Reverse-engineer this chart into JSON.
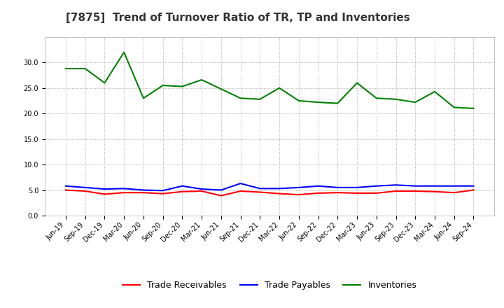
{
  "title": "[7875]  Trend of Turnover Ratio of TR, TP and Inventories",
  "x_labels": [
    "Jun-19",
    "Sep-19",
    "Dec-19",
    "Mar-20",
    "Jun-20",
    "Sep-20",
    "Dec-20",
    "Mar-21",
    "Jun-21",
    "Sep-21",
    "Dec-21",
    "Mar-22",
    "Jun-22",
    "Sep-22",
    "Dec-22",
    "Mar-23",
    "Jun-23",
    "Sep-23",
    "Dec-23",
    "Mar-24",
    "Jun-24",
    "Sep-24"
  ],
  "trade_receivables": [
    5.0,
    4.8,
    4.2,
    4.5,
    4.5,
    4.3,
    4.7,
    4.8,
    3.9,
    4.8,
    4.6,
    4.3,
    4.1,
    4.4,
    4.5,
    4.4,
    4.4,
    4.8,
    4.8,
    4.7,
    4.5,
    5.0
  ],
  "trade_payables": [
    5.8,
    5.5,
    5.2,
    5.3,
    5.0,
    4.9,
    5.8,
    5.2,
    5.0,
    6.3,
    5.3,
    5.3,
    5.5,
    5.8,
    5.5,
    5.5,
    5.8,
    6.0,
    5.8,
    5.8,
    5.8,
    5.8
  ],
  "inventories": [
    28.8,
    28.8,
    26.0,
    32.0,
    23.0,
    25.5,
    25.3,
    26.6,
    24.8,
    23.0,
    22.8,
    25.0,
    22.5,
    22.2,
    22.0,
    26.0,
    23.0,
    22.8,
    22.2,
    24.3,
    21.2,
    21.0
  ],
  "ylim": [
    0,
    35
  ],
  "yticks": [
    0.0,
    5.0,
    10.0,
    15.0,
    20.0,
    25.0,
    30.0
  ],
  "color_tr": "#FF0000",
  "color_tp": "#0000FF",
  "color_inv": "#008000",
  "legend_labels": [
    "Trade Receivables",
    "Trade Payables",
    "Inventories"
  ],
  "background_color": "#FFFFFF",
  "grid_color": "#999999",
  "title_fontsize": 11,
  "tick_fontsize": 7,
  "legend_fontsize": 9,
  "line_width": 1.5
}
